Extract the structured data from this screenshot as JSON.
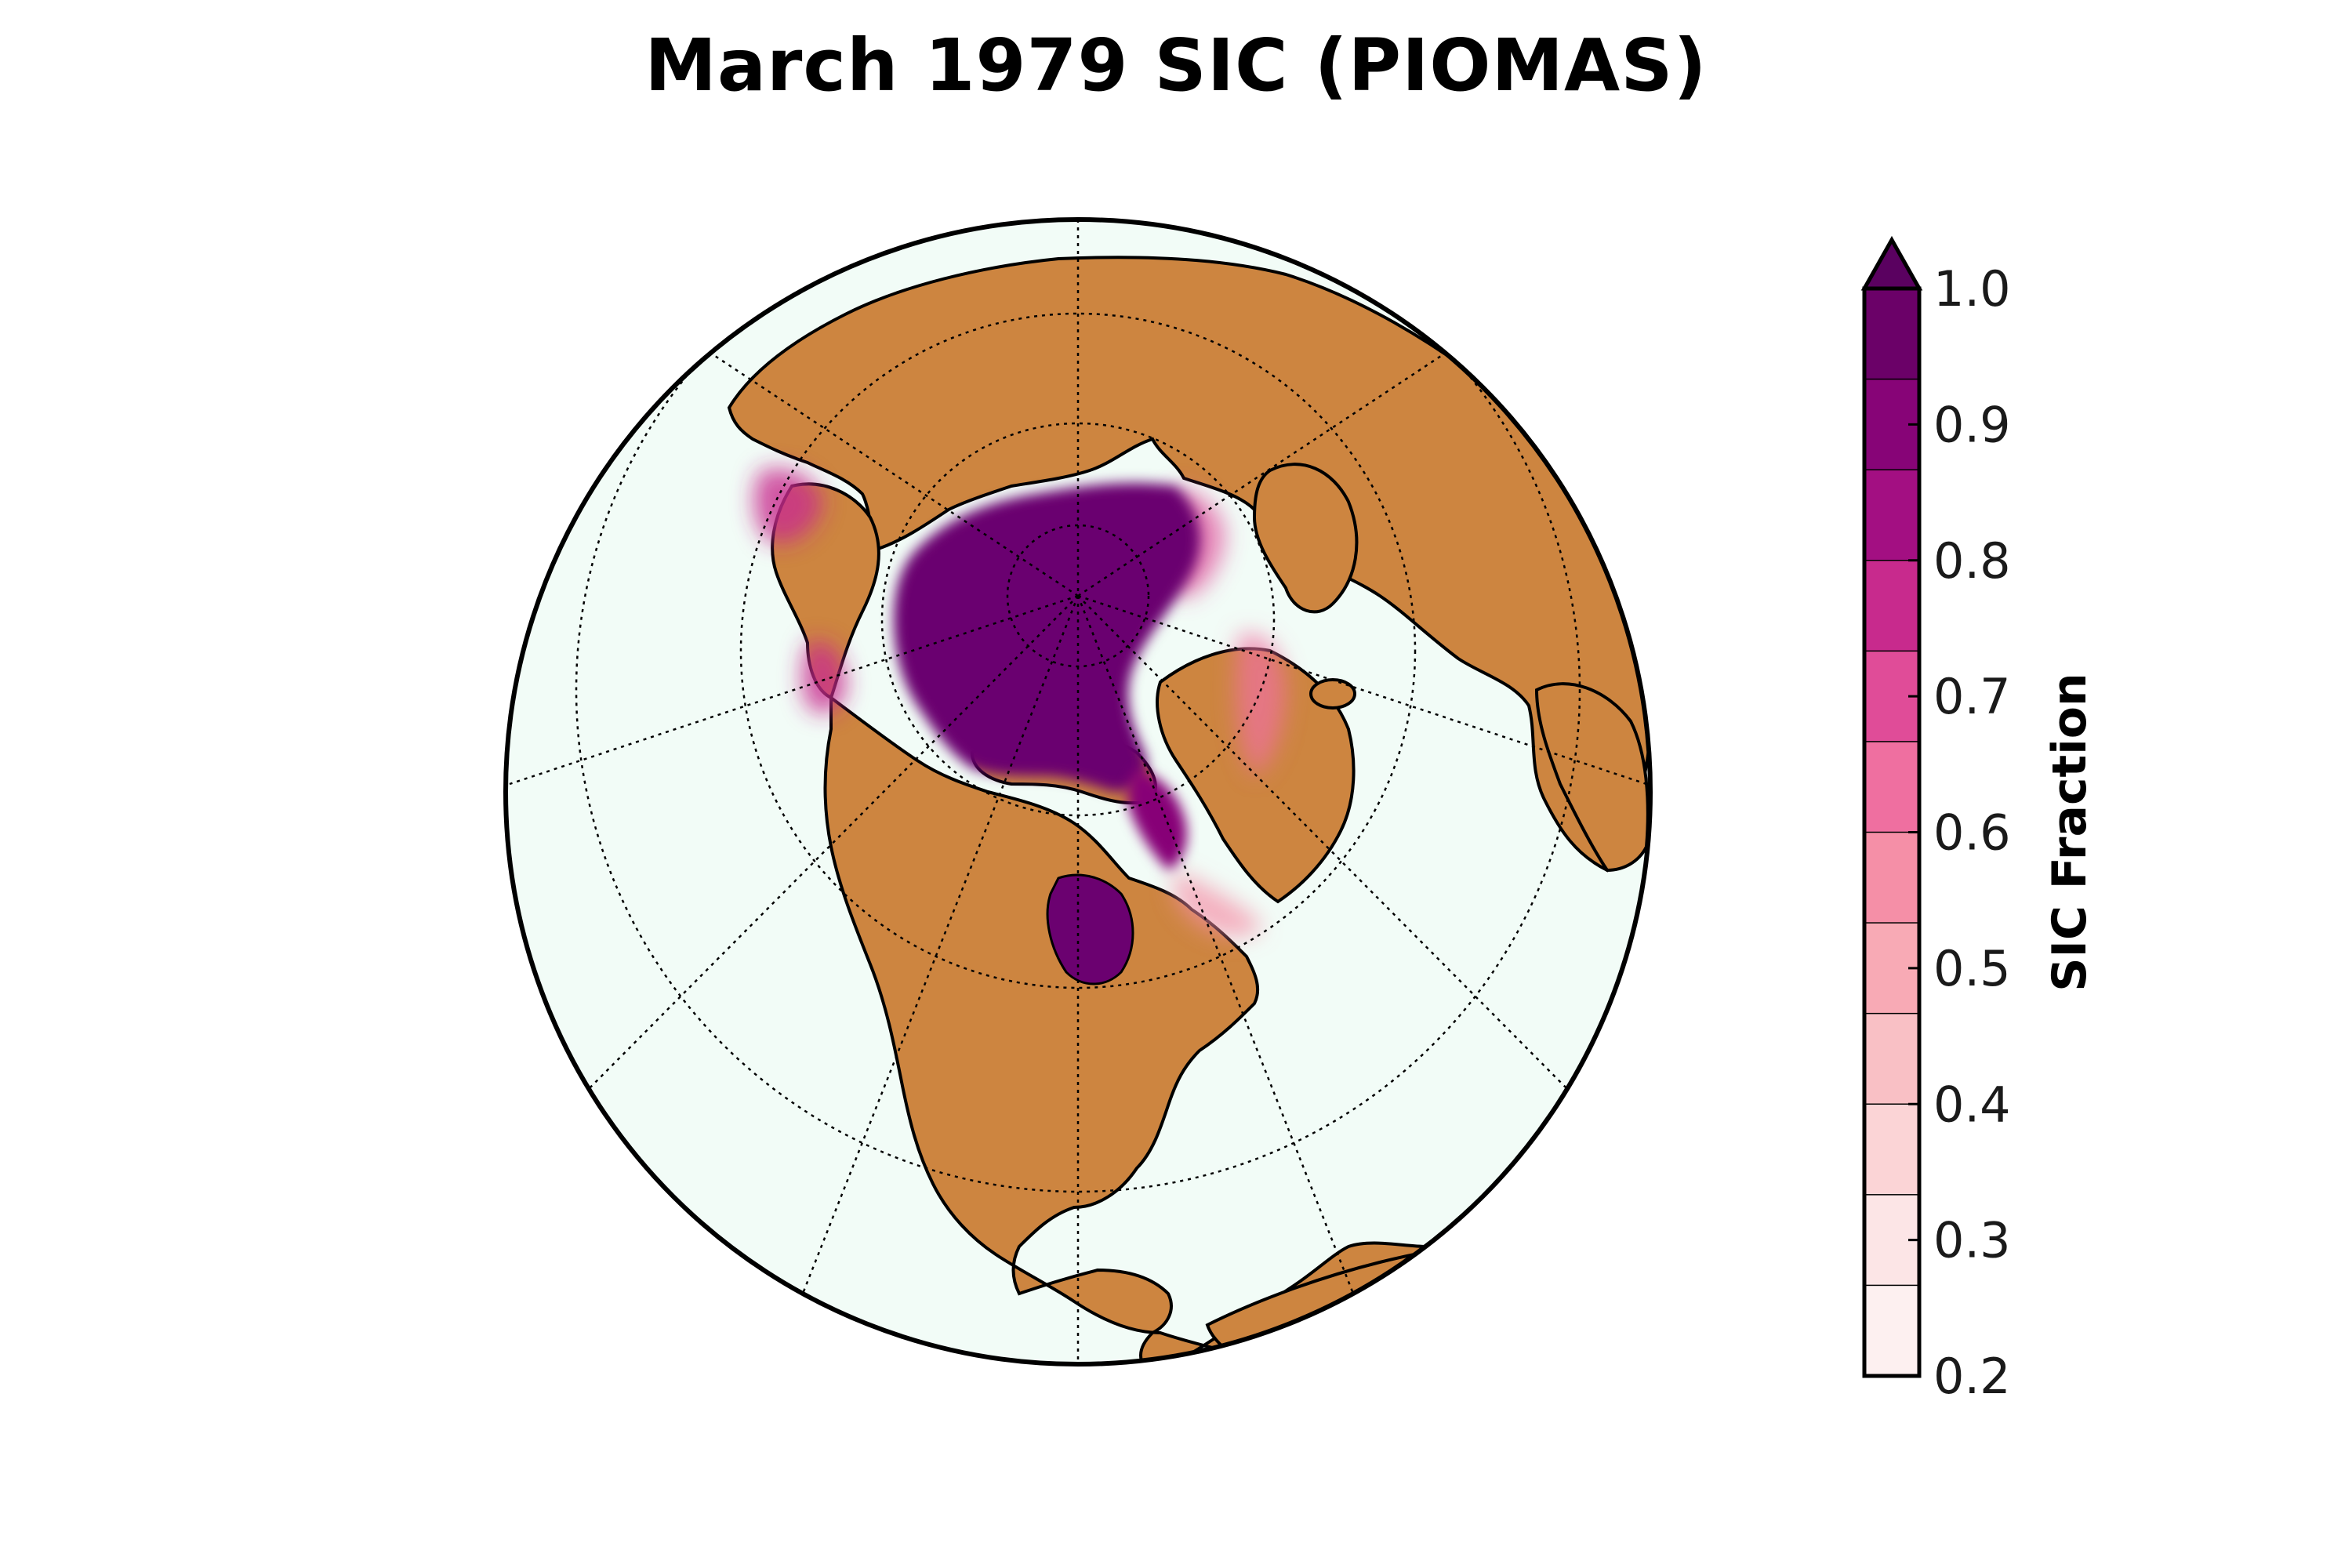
{
  "title": "March 1979 SIC (PIOMAS)",
  "colorbar": {
    "label": "SIC Fraction",
    "ticks": [
      "1.0",
      "0.9",
      "0.8",
      "0.7",
      "0.6",
      "0.5",
      "0.4",
      "0.3",
      "0.2"
    ],
    "range": [
      0.2,
      1.0
    ],
    "extend": "max",
    "colors": [
      "#fdf0f0",
      "#fce5e6",
      "#fbd4d6",
      "#f9c0c5",
      "#f8aab5",
      "#f58fa7",
      "#ef6fa0",
      "#e04c98",
      "#c82a8d",
      "#a30f82",
      "#870477",
      "#6b0168"
    ],
    "over_color": "#5a0160"
  },
  "map": {
    "projection": "orthographic (north polar)",
    "ocean_color": "#f2fcf7",
    "land_color": "#cd8540",
    "ice_color": "#6b0170",
    "graticule": "dotted"
  }
}
